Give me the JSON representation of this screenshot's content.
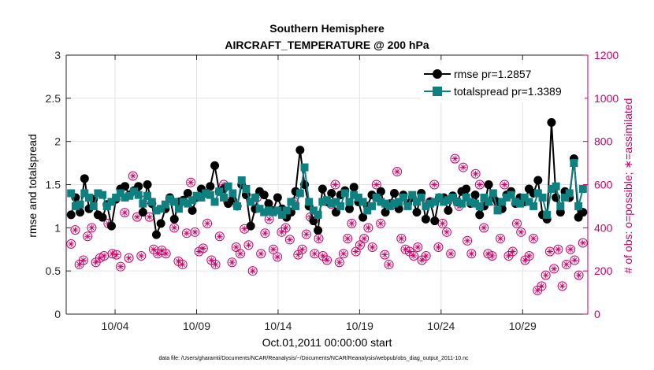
{
  "chart_data": {
    "type": "line",
    "title_line1": "Southern Hemisphere",
    "title_line2": "AIRCRAFT_TEMPERATURE @ 200 hPa",
    "xlabel": "Oct.01,2011 00:00:00 start",
    "ylabel_left": "rmse and totalspread",
    "ylabel_right": "# of obs: o=possible; ∗=assimilated",
    "footnote": "data file: /Users/gharamti/Documents/NCAR/Reanalysis/~/Documents/NCAR/Reanalysis/webpub/obs_diag_output_2011-10.nc",
    "x_unit": "days since 2011-10-01 00:00",
    "xlim": [
      1,
      33
    ],
    "ylim_left": [
      0,
      3
    ],
    "ylim_right": [
      0,
      1200
    ],
    "x_ticks": [
      {
        "value": 4,
        "label": "10/04"
      },
      {
        "value": 9,
        "label": "10/09"
      },
      {
        "value": 14,
        "label": "10/14"
      },
      {
        "value": 19,
        "label": "10/19"
      },
      {
        "value": 24,
        "label": "10/24"
      },
      {
        "value": 29,
        "label": "10/29"
      }
    ],
    "y_ticks_left": [
      "0",
      "0.5",
      "1",
      "1.5",
      "2",
      "2.5",
      "3"
    ],
    "y_ticks_right": [
      "0",
      "200",
      "400",
      "600",
      "800",
      "1000",
      "1200"
    ],
    "grid": true,
    "legend_position": "top-right",
    "colors": {
      "rmse": "#000000",
      "totalspread": "#0f8080",
      "obs": "#cc0066"
    },
    "series": [
      {
        "name": "rmse pr=1.2857",
        "marker": "circle",
        "values": [
          1.15,
          1.35,
          1.18,
          1.57,
          1.22,
          1.33,
          1.15,
          1.12,
          1.27,
          1.02,
          1.33,
          1.45,
          1.48,
          1.38,
          1.43,
          1.48,
          1.18,
          1.5,
          1.28,
          0.92,
          1.05,
          1.22,
          1.35,
          1.1,
          1.3,
          1.32,
          1.4,
          1.2,
          1.35,
          1.45,
          1.4,
          1.48,
          1.72,
          1.42,
          1.45,
          1.28,
          1.32,
          1.25,
          1.5,
          1.38,
          1.02,
          1.22,
          1.42,
          1.38,
          1.28,
          1.2,
          1.35,
          1.22,
          1.12,
          1.18,
          1.42,
          1.9,
          1.5,
          1.25,
          1.08,
          0.97,
          1.45,
          1.3,
          1.4,
          1.18,
          1.38,
          1.43,
          1.22,
          1.47,
          1.3,
          1.12,
          1.25,
          1.38,
          1.35,
          1.42,
          1.18,
          1.28,
          1.4,
          1.22,
          1.38,
          1.28,
          1.35,
          1.18,
          1.4,
          1.1,
          1.3,
          1.08,
          1.35,
          1.35,
          1.2,
          1.37,
          1.3,
          1.42,
          1.45,
          1.28,
          1.38,
          1.15,
          1.25,
          1.5,
          1.35,
          1.3,
          1.22,
          1.38,
          1.42,
          1.28,
          1.35,
          1.3,
          1.45,
          1.4,
          1.55,
          1.15,
          1.1,
          2.22,
          1.35,
          1.18,
          1.42,
          1.35,
          1.8,
          1.12,
          1.18
        ]
      },
      {
        "name": "totalspread pr=1.3389",
        "marker": "square",
        "values": [
          1.4,
          1.25,
          1.27,
          1.4,
          1.35,
          1.25,
          1.4,
          1.38,
          1.25,
          1.3,
          1.35,
          1.4,
          1.35,
          1.37,
          1.42,
          1.38,
          1.28,
          1.37,
          1.3,
          1.2,
          1.22,
          1.27,
          1.33,
          1.3,
          1.22,
          1.3,
          1.28,
          1.32,
          1.37,
          1.35,
          1.4,
          1.38,
          1.3,
          1.42,
          1.35,
          1.48,
          1.4,
          1.25,
          1.55,
          1.45,
          1.3,
          1.35,
          1.22,
          1.18,
          1.2,
          1.18,
          1.2,
          1.15,
          1.2,
          1.3,
          1.25,
          1.4,
          1.7,
          1.3,
          1.2,
          1.15,
          1.3,
          1.32,
          1.28,
          1.3,
          1.25,
          1.4,
          1.3,
          1.38,
          1.35,
          1.3,
          1.2,
          1.25,
          1.35,
          1.3,
          1.28,
          1.25,
          1.28,
          1.3,
          1.35,
          1.25,
          1.38,
          1.3,
          1.35,
          1.25,
          1.28,
          1.3,
          1.35,
          1.3,
          1.32,
          1.35,
          1.3,
          1.28,
          1.35,
          1.3,
          1.28,
          1.25,
          1.35,
          1.3,
          1.4,
          1.2,
          1.3,
          1.35,
          1.38,
          1.3,
          1.28,
          1.35,
          1.3,
          1.25,
          1.4,
          1.35,
          1.15,
          1.45,
          1.48,
          1.25,
          1.35,
          1.4,
          1.75,
          1.25,
          1.45
        ]
      },
      {
        "name": "obs possible",
        "axis": "right",
        "marker": "circle-open",
        "values": [
          325,
          390,
          230,
          250,
          360,
          400,
          240,
          260,
          270,
          420,
          280,
          275,
          220,
          470,
          260,
          640,
          450,
          270,
          530,
          450,
          300,
          280,
          295,
          280,
          530,
          400,
          245,
          230,
          375,
          610,
          380,
          290,
          305,
          420,
          250,
          230,
          360,
          600,
          520,
          240,
          310,
          280,
          395,
          320,
          200,
          540,
          280,
          375,
          440,
          300,
          265,
          380,
          400,
          345,
          520,
          275,
          300,
          370,
          450,
          280,
          350,
          270,
          250,
          510,
          600,
          240,
          280,
          350,
          420,
          290,
          320,
          350,
          400,
          310,
          600,
          420,
          275,
          230,
          510,
          660,
          350,
          300,
          290,
          270,
          310,
          250,
          270,
          520,
          600,
          310,
          420,
          380,
          280,
          720,
          500,
          680,
          340,
          280,
          650,
          600,
          400,
          280,
          270,
          520,
          350,
          600,
          270,
          290,
          420,
          380,
          250,
          270,
          350,
          110,
          130,
          180,
          290,
          210,
          300,
          130,
          230,
          300,
          250,
          180,
          330
        ]
      },
      {
        "name": "obs assimilated",
        "axis": "right",
        "marker": "asterisk",
        "values": [
          325,
          390,
          230,
          250,
          360,
          400,
          240,
          260,
          270,
          420,
          280,
          275,
          220,
          470,
          260,
          640,
          450,
          270,
          530,
          450,
          300,
          280,
          295,
          280,
          530,
          400,
          245,
          230,
          375,
          610,
          380,
          290,
          305,
          420,
          250,
          230,
          360,
          600,
          520,
          240,
          310,
          280,
          395,
          320,
          200,
          540,
          280,
          375,
          440,
          300,
          265,
          380,
          400,
          345,
          520,
          275,
          300,
          370,
          450,
          280,
          350,
          270,
          250,
          510,
          600,
          240,
          280,
          350,
          420,
          290,
          320,
          350,
          400,
          310,
          600,
          420,
          275,
          230,
          510,
          660,
          350,
          300,
          290,
          270,
          310,
          250,
          270,
          520,
          600,
          310,
          420,
          380,
          280,
          720,
          500,
          680,
          340,
          280,
          650,
          600,
          400,
          280,
          270,
          520,
          350,
          600,
          270,
          290,
          420,
          380,
          250,
          270,
          350,
          110,
          130,
          180,
          290,
          210,
          300,
          130,
          230,
          300,
          250,
          180,
          330
        ]
      }
    ]
  }
}
